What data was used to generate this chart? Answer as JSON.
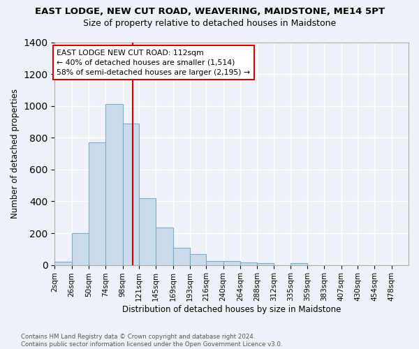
{
  "title": "EAST LODGE, NEW CUT ROAD, WEAVERING, MAIDSTONE, ME14 5PT",
  "subtitle": "Size of property relative to detached houses in Maidstone",
  "xlabel": "Distribution of detached houses by size in Maidstone",
  "ylabel": "Number of detached properties",
  "bar_color": "#ccdcec",
  "bar_edge_color": "#7aaac8",
  "bar_heights": [
    20,
    200,
    770,
    1010,
    890,
    420,
    235,
    110,
    70,
    25,
    25,
    15,
    10,
    0,
    10,
    0,
    0,
    0,
    0,
    0,
    0
  ],
  "bin_edges": [
    2,
    26,
    50,
    74,
    98,
    121,
    145,
    169,
    193,
    216,
    240,
    264,
    288,
    312,
    335,
    359,
    383,
    407,
    430,
    454,
    478,
    502
  ],
  "tick_labels": [
    "2sqm",
    "26sqm",
    "50sqm",
    "74sqm",
    "98sqm",
    "121sqm",
    "145sqm",
    "169sqm",
    "193sqm",
    "216sqm",
    "240sqm",
    "264sqm",
    "288sqm",
    "312sqm",
    "335sqm",
    "359sqm",
    "383sqm",
    "407sqm",
    "430sqm",
    "454sqm",
    "478sqm"
  ],
  "vline_x": 112,
  "vline_color": "#cc0000",
  "annotation_text": "EAST LODGE NEW CUT ROAD: 112sqm\n← 40% of detached houses are smaller (1,514)\n58% of semi-detached houses are larger (2,195) →",
  "annotation_box_color": "#ffffff",
  "annotation_box_edge": "#cc0000",
  "ylim": [
    0,
    1400
  ],
  "yticks": [
    0,
    200,
    400,
    600,
    800,
    1000,
    1200,
    1400
  ],
  "footer_text": "Contains HM Land Registry data © Crown copyright and database right 2024.\nContains public sector information licensed under the Open Government Licence v3.0.",
  "bg_color": "#eef2f8",
  "grid_color": "#ffffff"
}
